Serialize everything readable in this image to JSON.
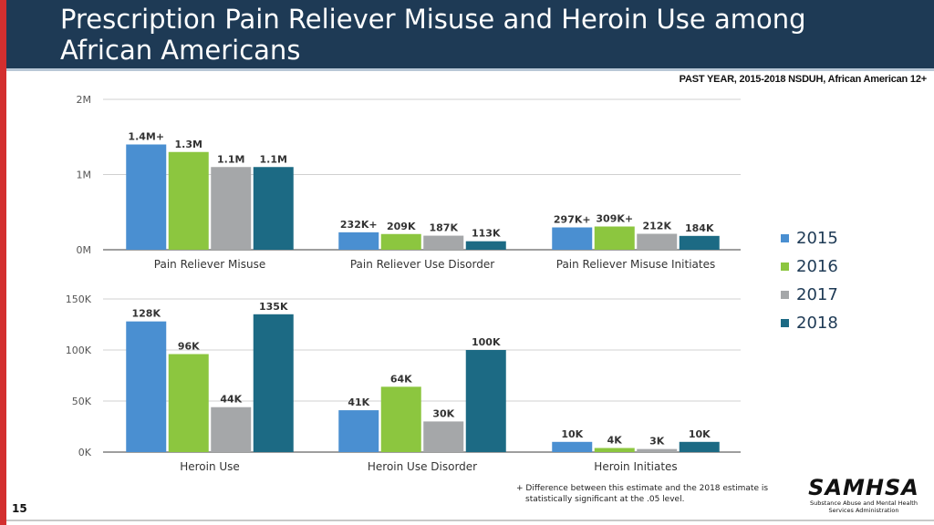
{
  "header": {
    "title": "Prescription Pain Reliever Misuse and Heroin Use among African Americans",
    "subtitle": "PAST YEAR, 2015-2018 NSDUH, African American 12+"
  },
  "legend": {
    "items": [
      {
        "label": "2015",
        "color": "#4a8fd1"
      },
      {
        "label": "2016",
        "color": "#8cc63f"
      },
      {
        "label": "2017",
        "color": "#a5a7a9"
      },
      {
        "label": "2018",
        "color": "#1c6a84"
      }
    ]
  },
  "chart_data": [
    {
      "type": "bar",
      "title": "",
      "categories": [
        "Pain Reliever Misuse",
        "Pain Reliever Use Disorder",
        "Pain Reliever Misuse Initiates"
      ],
      "ylim": [
        0,
        2000000
      ],
      "yticks": [
        {
          "value": 0,
          "label": "0M"
        },
        {
          "value": 1000000,
          "label": "1M"
        },
        {
          "value": 2000000,
          "label": "2M"
        }
      ],
      "series": [
        {
          "name": "2015",
          "values": [
            1400000,
            232000,
            297000
          ],
          "labels": [
            "1.4M+",
            "232K+",
            "297K+"
          ]
        },
        {
          "name": "2016",
          "values": [
            1300000,
            209000,
            309000
          ],
          "labels": [
            "1.3M",
            "209K",
            "309K+"
          ]
        },
        {
          "name": "2017",
          "values": [
            1100000,
            187000,
            212000
          ],
          "labels": [
            "1.1M",
            "187K",
            "212K"
          ]
        },
        {
          "name": "2018",
          "values": [
            1100000,
            113000,
            184000
          ],
          "labels": [
            "1.1M",
            "113K",
            "184K"
          ]
        }
      ]
    },
    {
      "type": "bar",
      "title": "",
      "categories": [
        "Heroin Use",
        "Heroin Use Disorder",
        "Heroin Initiates"
      ],
      "ylim": [
        0,
        150000
      ],
      "yticks": [
        {
          "value": 0,
          "label": "0K"
        },
        {
          "value": 50000,
          "label": "50K"
        },
        {
          "value": 100000,
          "label": "100K"
        },
        {
          "value": 150000,
          "label": "150K"
        }
      ],
      "series": [
        {
          "name": "2015",
          "values": [
            128000,
            41000,
            10000
          ],
          "labels": [
            "128K",
            "41K",
            "10K"
          ]
        },
        {
          "name": "2016",
          "values": [
            96000,
            64000,
            4000
          ],
          "labels": [
            "96K",
            "64K",
            "4K"
          ]
        },
        {
          "name": "2017",
          "values": [
            44000,
            30000,
            3000
          ],
          "labels": [
            "44K",
            "30K",
            "3K"
          ]
        },
        {
          "name": "2018",
          "values": [
            135000,
            100000,
            10000
          ],
          "labels": [
            "135K",
            "100K",
            "10K"
          ]
        }
      ]
    }
  ],
  "footnote": "+ Difference between this estimate and the 2018 estimate is statistically significant at the .05 level.",
  "logo": {
    "word": "SAMHSA",
    "subtitle_line1": "Substance Abuse and Mental Health",
    "subtitle_line2": "Services Administration"
  },
  "page_number": "15"
}
